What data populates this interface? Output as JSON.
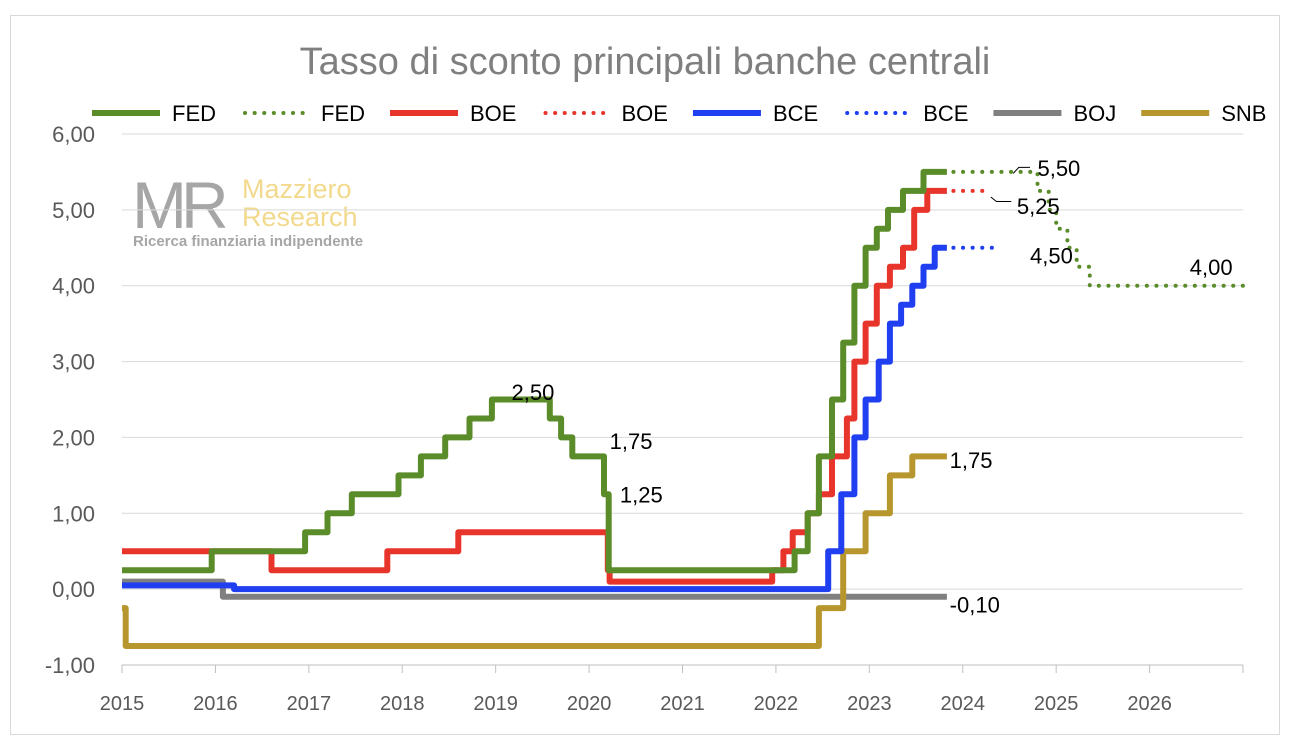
{
  "chart_data": {
    "type": "line",
    "title": "Tasso di sconto principali banche centrali",
    "xlabel": "",
    "ylabel": "",
    "xlim": [
      2015,
      2027
    ],
    "ylim": [
      -1.0,
      6.0
    ],
    "y_ticks": [
      "-1,00",
      "0,00",
      "1,00",
      "2,00",
      "3,00",
      "4,00",
      "5,00",
      "6,00"
    ],
    "x_ticks": [
      "2015",
      "2016",
      "2017",
      "2018",
      "2019",
      "2020",
      "2021",
      "2022",
      "2023",
      "2024",
      "2025",
      "2026"
    ],
    "grid": "horizontal",
    "legend": "top",
    "legend_entries": [
      {
        "label": "FED",
        "color": "#5b8c2a",
        "style": "solid"
      },
      {
        "label": "FED",
        "color": "#5b8c2a",
        "style": "dotted"
      },
      {
        "label": "BOE",
        "color": "#e8352b",
        "style": "solid"
      },
      {
        "label": "BOE",
        "color": "#e8352b",
        "style": "dotted"
      },
      {
        "label": "BCE",
        "color": "#1f3ff0",
        "style": "solid"
      },
      {
        "label": "BCE",
        "color": "#1f3ff0",
        "style": "dotted"
      },
      {
        "label": "BOJ",
        "color": "#808080",
        "style": "solid"
      },
      {
        "label": "SNB",
        "color": "#b8962e",
        "style": "solid"
      }
    ],
    "series": [
      {
        "name": "BOJ",
        "color": "#808080",
        "style": "solid",
        "x": [
          2015.0,
          2016.08,
          2016.08,
          2023.83
        ],
        "y": [
          0.1,
          0.1,
          -0.1,
          -0.1
        ]
      },
      {
        "name": "SNB",
        "color": "#b8962e",
        "style": "solid",
        "x": [
          2015.0,
          2015.04,
          2015.04,
          2022.46,
          2022.46,
          2022.72,
          2022.72,
          2022.96,
          2022.96,
          2023.22,
          2023.22,
          2023.46,
          2023.46,
          2023.83
        ],
        "y": [
          -0.25,
          -0.25,
          -0.75,
          -0.75,
          -0.25,
          -0.25,
          0.5,
          0.5,
          1.0,
          1.0,
          1.5,
          1.5,
          1.75,
          1.75
        ]
      },
      {
        "name": "BCE",
        "color": "#1f3ff0",
        "style": "solid",
        "x": [
          2015.0,
          2016.2,
          2016.2,
          2022.56,
          2022.56,
          2022.7,
          2022.7,
          2022.84,
          2022.84,
          2022.96,
          2022.96,
          2023.1,
          2023.1,
          2023.22,
          2023.22,
          2023.34,
          2023.34,
          2023.46,
          2023.46,
          2023.58,
          2023.58,
          2023.7,
          2023.7,
          2023.83
        ],
        "y": [
          0.05,
          0.05,
          0.0,
          0.0,
          0.5,
          0.5,
          1.25,
          1.25,
          2.0,
          2.0,
          2.5,
          2.5,
          3.0,
          3.0,
          3.5,
          3.5,
          3.75,
          3.75,
          4.0,
          4.0,
          4.25,
          4.25,
          4.5,
          4.5
        ]
      },
      {
        "name": "BOE",
        "color": "#e8352b",
        "style": "solid",
        "x": [
          2015.0,
          2016.6,
          2016.6,
          2017.84,
          2017.84,
          2018.6,
          2018.6,
          2020.2,
          2020.2,
          2020.22,
          2020.22,
          2021.96,
          2021.96,
          2022.08,
          2022.08,
          2022.18,
          2022.18,
          2022.34,
          2022.34,
          2022.46,
          2022.46,
          2022.6,
          2022.6,
          2022.76,
          2022.76,
          2022.84,
          2022.84,
          2022.96,
          2022.96,
          2023.08,
          2023.08,
          2023.22,
          2023.22,
          2023.36,
          2023.36,
          2023.48,
          2023.48,
          2023.62,
          2023.62,
          2023.83
        ],
        "y": [
          0.5,
          0.5,
          0.25,
          0.25,
          0.5,
          0.5,
          0.75,
          0.75,
          0.25,
          0.25,
          0.1,
          0.1,
          0.25,
          0.25,
          0.5,
          0.5,
          0.75,
          0.75,
          1.0,
          1.0,
          1.25,
          1.25,
          1.75,
          1.75,
          2.25,
          2.25,
          3.0,
          3.0,
          3.5,
          3.5,
          4.0,
          4.0,
          4.25,
          4.25,
          4.5,
          4.5,
          5.0,
          5.0,
          5.25,
          5.25
        ]
      },
      {
        "name": "FED",
        "color": "#5b8c2a",
        "style": "solid",
        "x": [
          2015.0,
          2015.96,
          2015.96,
          2016.96,
          2016.96,
          2017.2,
          2017.2,
          2017.46,
          2017.46,
          2017.96,
          2017.96,
          2018.2,
          2018.2,
          2018.46,
          2018.46,
          2018.72,
          2018.72,
          2018.96,
          2018.96,
          2019.58,
          2019.58,
          2019.7,
          2019.7,
          2019.82,
          2019.82,
          2020.16,
          2020.16,
          2020.21,
          2020.21,
          2022.2,
          2022.2,
          2022.34,
          2022.34,
          2022.46,
          2022.46,
          2022.6,
          2022.6,
          2022.72,
          2022.72,
          2022.84,
          2022.84,
          2022.96,
          2022.96,
          2023.08,
          2023.08,
          2023.2,
          2023.2,
          2023.36,
          2023.36,
          2023.58,
          2023.58,
          2023.83
        ],
        "y": [
          0.25,
          0.25,
          0.5,
          0.5,
          0.75,
          0.75,
          1.0,
          1.0,
          1.25,
          1.25,
          1.5,
          1.5,
          1.75,
          1.75,
          2.0,
          2.0,
          2.25,
          2.25,
          2.5,
          2.5,
          2.25,
          2.25,
          2.0,
          2.0,
          1.75,
          1.75,
          1.25,
          1.25,
          0.25,
          0.25,
          0.5,
          0.5,
          1.0,
          1.0,
          1.75,
          1.75,
          2.5,
          2.5,
          3.25,
          3.25,
          4.0,
          4.0,
          4.5,
          4.5,
          4.75,
          4.75,
          5.0,
          5.0,
          5.25,
          5.25,
          5.5,
          5.5
        ]
      },
      {
        "name": "FED",
        "color": "#5b8c2a",
        "style": "dotted",
        "x": [
          2023.9,
          2024.6,
          2024.6,
          2024.8,
          2024.8,
          2024.92,
          2024.92,
          2025.0,
          2025.0,
          2025.12,
          2025.12,
          2025.22,
          2025.22,
          2025.36,
          2025.36,
          2025.5,
          2025.5,
          2027.0
        ],
        "y": [
          5.5,
          5.5,
          5.5,
          5.5,
          5.25,
          5.25,
          5.0,
          5.0,
          4.75,
          4.75,
          4.5,
          4.5,
          4.25,
          4.25,
          4.0,
          4.0,
          4.0,
          4.0
        ]
      },
      {
        "name": "BOE",
        "color": "#e8352b",
        "style": "dotted",
        "x": [
          2023.9,
          2024.26
        ],
        "y": [
          5.25,
          5.25
        ]
      },
      {
        "name": "BCE",
        "color": "#1f3ff0",
        "style": "dotted",
        "x": [
          2023.9,
          2024.36
        ],
        "y": [
          4.5,
          4.5
        ]
      }
    ],
    "annotations": [
      {
        "text": "2,50",
        "x": 2019.17,
        "y": 2.6
      },
      {
        "text": "1,75",
        "x": 2020.22,
        "y": 1.95
      },
      {
        "text": "1,25",
        "x": 2020.33,
        "y": 1.25
      },
      {
        "text": "5,50",
        "x": 2024.8,
        "y": 5.55
      },
      {
        "text": "5,25",
        "x": 2024.58,
        "y": 5.05
      },
      {
        "text": "4,50",
        "x": 2024.72,
        "y": 4.4
      },
      {
        "text": "4,00",
        "x": 2026.43,
        "y": 4.25
      },
      {
        "text": "1,75",
        "x": 2023.86,
        "y": 1.7
      },
      {
        "text": "-0,10",
        "x": 2023.86,
        "y": -0.2
      }
    ],
    "leaders": [
      {
        "x": [
          2024.54,
          2024.6,
          2024.72
        ],
        "y": [
          5.48,
          5.56,
          5.56
        ]
      },
      {
        "x": [
          2024.3,
          2024.36,
          2024.52
        ],
        "y": [
          5.17,
          5.11,
          5.11
        ]
      }
    ]
  },
  "logo": {
    "mark": "MR",
    "brand_line1": "Mazziero",
    "brand_line2": "Research",
    "tagline": "Ricerca finanziaria indipendente"
  }
}
